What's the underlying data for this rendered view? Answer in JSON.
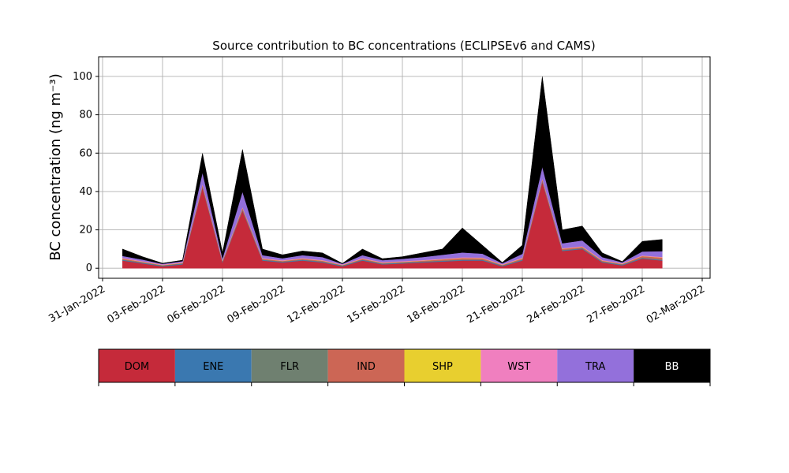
{
  "chart_data": {
    "type": "stacked_area",
    "title": "Source contribution to BC concentrations (ECLIPSEv6 and CAMS)",
    "ylabel": "BC concentration (ng m⁻³)",
    "x": [
      "2022-02-01",
      "2022-02-02",
      "2022-02-03",
      "2022-02-04",
      "2022-02-05",
      "2022-02-06",
      "2022-02-07",
      "2022-02-08",
      "2022-02-09",
      "2022-02-10",
      "2022-02-11",
      "2022-02-12",
      "2022-02-13",
      "2022-02-14",
      "2022-02-15",
      "2022-02-16",
      "2022-02-17",
      "2022-02-18",
      "2022-02-19",
      "2022-02-20",
      "2022-02-21",
      "2022-02-22",
      "2022-02-23",
      "2022-02-24",
      "2022-02-25",
      "2022-02-26",
      "2022-02-27",
      "2022-02-28"
    ],
    "xlim": [
      "2022-01-31",
      "2022-03-02"
    ],
    "xticks": [
      {
        "value": "2022-01-31",
        "label": "31-Jan-2022"
      },
      {
        "value": "2022-02-03",
        "label": "03-Feb-2022"
      },
      {
        "value": "2022-02-06",
        "label": "06-Feb-2022"
      },
      {
        "value": "2022-02-09",
        "label": "09-Feb-2022"
      },
      {
        "value": "2022-02-12",
        "label": "12-Feb-2022"
      },
      {
        "value": "2022-02-15",
        "label": "15-Feb-2022"
      },
      {
        "value": "2022-02-18",
        "label": "18-Feb-2022"
      },
      {
        "value": "2022-02-21",
        "label": "21-Feb-2022"
      },
      {
        "value": "2022-02-24",
        "label": "24-Feb-2022"
      },
      {
        "value": "2022-02-27",
        "label": "27-Feb-2022"
      },
      {
        "value": "2022-03-02",
        "label": "02-Mar-2022"
      }
    ],
    "ylim": [
      -5.25,
      110.25
    ],
    "yticks": [
      0,
      20,
      40,
      60,
      80,
      100
    ],
    "grid": true,
    "legend": "bottom",
    "series": [
      {
        "name": "DOM",
        "color": "#c52a3a",
        "values": [
          4,
          2.5,
          1,
          2,
          42,
          3,
          30,
          4,
          3,
          4,
          3,
          1,
          4,
          2,
          2.5,
          3,
          3.5,
          4,
          4,
          1,
          4,
          45,
          9,
          10,
          3,
          1.5,
          5,
          4
        ]
      },
      {
        "name": "ENE",
        "color": "#3a78b0",
        "values": [
          0.3,
          0.3,
          0.3,
          0.3,
          0.3,
          0.3,
          0.3,
          0.3,
          0.3,
          0.3,
          0.3,
          0.3,
          0.3,
          0.3,
          0.3,
          0.3,
          0.3,
          0.3,
          0.3,
          0.3,
          0.3,
          0.3,
          0.3,
          0.3,
          0.3,
          0.3,
          0.3,
          0.3
        ]
      },
      {
        "name": "FLR",
        "color": "#6f8070",
        "values": [
          0.2,
          0.2,
          0.2,
          0.2,
          0.2,
          0.2,
          0.2,
          0.2,
          0.2,
          0.2,
          0.2,
          0.2,
          0.2,
          0.2,
          0.2,
          0.2,
          0.2,
          0.2,
          0.2,
          0.2,
          0.2,
          0.2,
          0.2,
          0.2,
          0.2,
          0.2,
          0.2,
          0.2
        ]
      },
      {
        "name": "IND",
        "color": "#cc6655",
        "values": [
          0.5,
          0.3,
          0.1,
          0.2,
          1,
          0.3,
          1,
          0.4,
          0.3,
          0.4,
          0.4,
          0.1,
          0.4,
          0.3,
          0.3,
          0.4,
          0.6,
          0.8,
          0.7,
          0.2,
          0.6,
          1,
          0.6,
          0.6,
          0.4,
          0.2,
          0.8,
          1
        ]
      },
      {
        "name": "SHP",
        "color": "#e8cf2f",
        "values": [
          0.1,
          0.1,
          0.1,
          0.1,
          0.1,
          0.1,
          0.1,
          0.1,
          0.1,
          0.1,
          0.1,
          0.1,
          0.1,
          0.1,
          0.1,
          0.1,
          0.1,
          0.1,
          0.1,
          0.1,
          0.1,
          0.1,
          0.1,
          0.1,
          0.1,
          0.1,
          0.1,
          0.1
        ]
      },
      {
        "name": "WST",
        "color": "#f07fbf",
        "values": [
          0.3,
          0.3,
          0.3,
          0.3,
          0.3,
          0.3,
          0.3,
          0.3,
          0.3,
          0.3,
          0.3,
          0.3,
          0.3,
          0.3,
          0.3,
          0.3,
          0.3,
          0.3,
          0.3,
          0.3,
          0.3,
          0.3,
          0.3,
          0.3,
          0.3,
          0.3,
          0.3,
          0.3
        ]
      },
      {
        "name": "TRA",
        "color": "#9370db",
        "values": [
          1,
          0.8,
          0.3,
          0.6,
          6,
          1,
          8,
          1.5,
          1,
          1.5,
          1.5,
          0.3,
          1.5,
          1,
          1.2,
          1.5,
          2,
          2.5,
          2,
          0.5,
          2,
          6,
          2.5,
          3,
          1.5,
          0.5,
          2,
          3
        ]
      },
      {
        "name": "BB",
        "color": "#000000",
        "values": [
          3.6,
          1.5,
          0.3,
          0.5,
          10,
          2.8,
          22,
          3.2,
          1.8,
          2.2,
          2.2,
          0.2,
          3.2,
          0.8,
          1.1,
          2.2,
          3,
          12.8,
          4.4,
          0.4,
          4.5,
          47,
          7,
          7.5,
          2.2,
          0.4,
          5.3,
          6.1
        ]
      }
    ]
  }
}
